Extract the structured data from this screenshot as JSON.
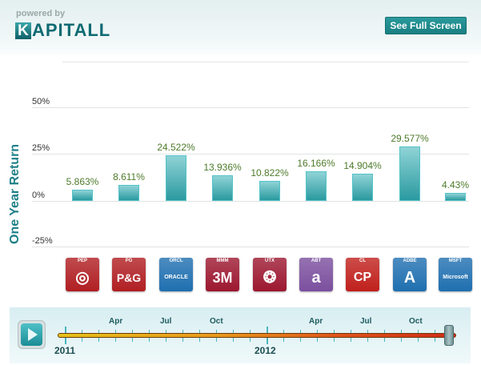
{
  "header": {
    "powered_by": "powered by",
    "logo_first": "K",
    "logo_rest": "APITALL",
    "full_screen_button": "See Full Screen"
  },
  "chart_data": {
    "type": "bar",
    "title": "",
    "xlabel": "",
    "ylabel": "One Year Return",
    "ylim": [
      -25,
      50
    ],
    "yticks": [
      "50%",
      "25%",
      "0%",
      "-25%"
    ],
    "categories": [
      "PEP",
      "PG",
      "ORCL",
      "MMM",
      "UTX",
      "ABT",
      "CL",
      "ADBE",
      "MSFT"
    ],
    "values": [
      5.863,
      8.611,
      24.522,
      13.936,
      10.822,
      16.166,
      14.904,
      29.577,
      4.43
    ],
    "labels": [
      "5.863%",
      "8.611%",
      "24.522%",
      "13.936%",
      "10.822%",
      "16.166%",
      "14.904%",
      "29.577%",
      "4.43%"
    ],
    "grid": true,
    "legend": null
  },
  "tickers": [
    {
      "symbol": "PEP",
      "logo": "◎",
      "color": "#b01e22"
    },
    {
      "symbol": "PG",
      "logo": "P&G",
      "color": "#b01e22"
    },
    {
      "symbol": "ORCL",
      "logo": "ORACLE",
      "color": "#1f6fb0"
    },
    {
      "symbol": "MMM",
      "logo": "3M",
      "color": "#9c1730"
    },
    {
      "symbol": "UTX",
      "logo": "❂",
      "color": "#9c1730"
    },
    {
      "symbol": "ABT",
      "logo": "a",
      "color": "#7b4f9e"
    },
    {
      "symbol": "CL",
      "logo": "CP",
      "color": "#c0201c"
    },
    {
      "symbol": "ADBE",
      "logo": "A",
      "color": "#1f6fb0"
    },
    {
      "symbol": "MSFT",
      "logo": "Microsoft",
      "color": "#1f6fb0"
    }
  ],
  "timeline": {
    "months": [
      "Apr",
      "Jul",
      "Oct",
      "Apr",
      "Jul",
      "Oct"
    ],
    "years": [
      "2011",
      "2012"
    ],
    "play_icon": "play-icon"
  }
}
